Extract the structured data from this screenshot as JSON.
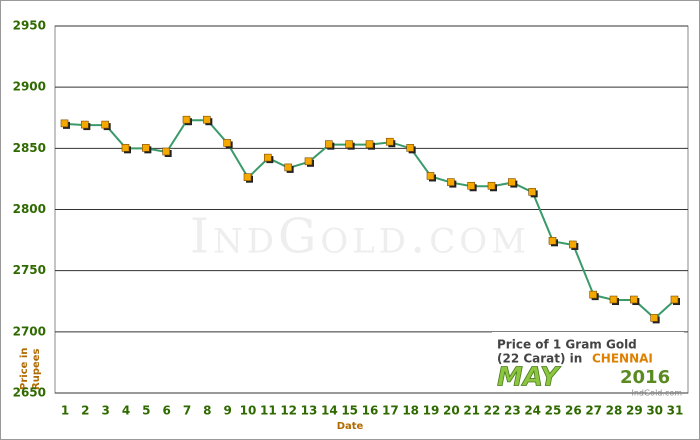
{
  "chart_data": {
    "type": "line",
    "categories": [
      "1",
      "2",
      "3",
      "4",
      "5",
      "6",
      "7",
      "8",
      "9",
      "10",
      "11",
      "12",
      "13",
      "14",
      "15",
      "16",
      "17",
      "18",
      "19",
      "20",
      "21",
      "22",
      "23",
      "24",
      "25",
      "26",
      "27",
      "28",
      "29",
      "30",
      "31"
    ],
    "values": [
      2870,
      2869,
      2869,
      2850,
      2850,
      2847,
      2873,
      2873,
      2854,
      2826,
      2842,
      2834,
      2839,
      2853,
      2853,
      2853,
      2855,
      2850,
      2827,
      2822,
      2819,
      2819,
      2822,
      2814,
      2774,
      2771,
      2730,
      2726,
      2726,
      2711,
      2726
    ],
    "color": "#3a9a6a",
    "marker_color": "#f5a800",
    "ylim": [
      2650,
      2950
    ],
    "yticks": [
      2650,
      2700,
      2750,
      2800,
      2850,
      2900,
      2950
    ],
    "grid": true,
    "xlabel": "Date",
    "ylabel": [
      "Price in",
      "Rupees"
    ],
    "watermark": "IndGold.com",
    "badge": {
      "line1": "Price of 1 Gram Gold",
      "line2": "(22 Carat) in",
      "city": "CHENNAI",
      "month": "MAY",
      "year": "2016",
      "site": "IndGold.com"
    }
  }
}
